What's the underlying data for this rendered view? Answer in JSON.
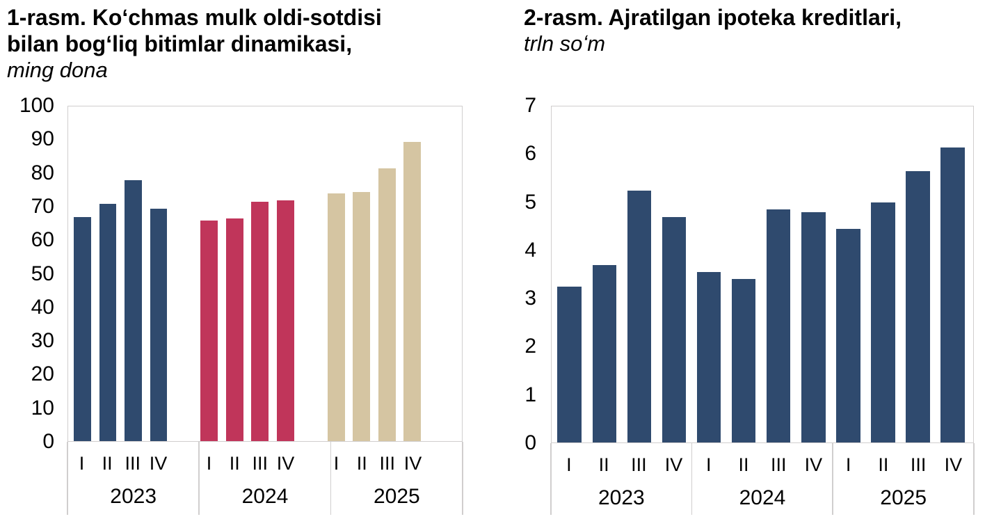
{
  "page": {
    "background": "#FFFFFF",
    "kind": "report-figure-pair"
  },
  "chart_data": [
    {
      "type": "bar",
      "figure_number": "1-rasm",
      "title": "1-rasm. Koʻchmas mulk oldi-sotdisi bilan bogʻliq bitimlar dinamikasi,",
      "title_lines": [
        "1-rasm. Koʻchmas mulk oldi-sotdisi",
        "bilan bogʻliq bitimlar dinamikasi,"
      ],
      "unit_label": "ming dona",
      "quarters": [
        "I",
        "II",
        "III",
        "IV"
      ],
      "years": [
        "2023",
        "2024",
        "2025"
      ],
      "groups": [
        {
          "year": "2023",
          "color": "#2F4A6E",
          "values": [
            67,
            71,
            78,
            69.5
          ]
        },
        {
          "year": "2024",
          "color": "#C0355A",
          "values": [
            66,
            66.5,
            71.5,
            72
          ]
        },
        {
          "year": "2025",
          "color": "#D5C5A2",
          "values": [
            74,
            74.5,
            81.5,
            89.5
          ]
        }
      ],
      "ylim": [
        0,
        100
      ],
      "ytick_interval": 10,
      "grid": false,
      "legend": false,
      "frame_color": "#D0CECE"
    },
    {
      "type": "bar",
      "figure_number": "2-rasm",
      "title": "2-rasm. Ajratilgan ipoteka kreditlari,",
      "title_lines": [
        "2-rasm. Ajratilgan ipoteka kreditlari,"
      ],
      "unit_label": "trln soʻm",
      "quarters": [
        "I",
        "II",
        "III",
        "IV"
      ],
      "years": [
        "2023",
        "2024",
        "2025"
      ],
      "groups": [
        {
          "year": "2023",
          "color": "#2F4A6E",
          "values": [
            3.25,
            3.7,
            5.25,
            4.7
          ]
        },
        {
          "year": "2024",
          "color": "#2F4A6E",
          "values": [
            3.55,
            3.4,
            4.85,
            4.8
          ]
        },
        {
          "year": "2025",
          "color": "#2F4A6E",
          "values": [
            4.45,
            5.0,
            5.65,
            6.15
          ]
        }
      ],
      "ylim": [
        0,
        7
      ],
      "ytick_interval": 1,
      "grid": false,
      "legend": false,
      "frame_color": "#D0CECE"
    }
  ]
}
